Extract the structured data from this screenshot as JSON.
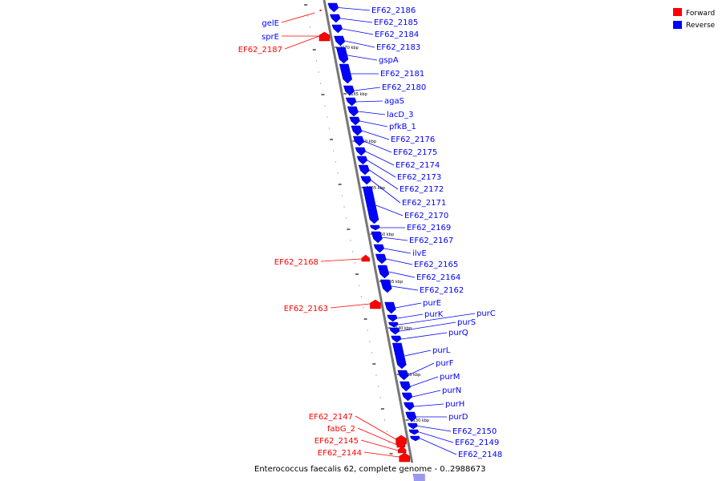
{
  "caption": "Enterococcus faecalis 62, complete genome - 0..2988673",
  "legend": [
    {
      "label": "Forward",
      "color": "#ff0000"
    },
    {
      "label": "Reverse",
      "color": "#0000ff"
    }
  ],
  "ticks": [
    "2170 kbp",
    "2165 kbp",
    "2160 kbp",
    "2155 kbp",
    "2150 kbp",
    "2145 kbp",
    "2140 kbp",
    "2135 kbp",
    "2130 kbp"
  ],
  "forward_genes": [
    "gelE",
    "sprE",
    "EF62_2187",
    "EF62_2168",
    "EF62_2163",
    "EF62_2147",
    "fabG_2",
    "EF62_2145",
    "EF62_2144"
  ],
  "reverse_genes": [
    "EF62_2186",
    "EF62_2185",
    "EF62_2184",
    "EF62_2183",
    "gspA",
    "EF62_2181",
    "EF62_2180",
    "agaS",
    "lacD_3",
    "pfkB_1",
    "EF62_2176",
    "EF62_2175",
    "EF62_2174",
    "EF62_2173",
    "EF62_2172",
    "EF62_2171",
    "EF62_2170",
    "EF62_2169",
    "EF62_2167",
    "ilvE",
    "EF62_2165",
    "EF62_2164",
    "EF62_2162",
    "purE",
    "purK",
    "purC",
    "purS",
    "purQ",
    "purL",
    "purF",
    "purM",
    "purN",
    "purH",
    "purD",
    "EF62_2150",
    "EF62_2149",
    "EF62_2148"
  ]
}
